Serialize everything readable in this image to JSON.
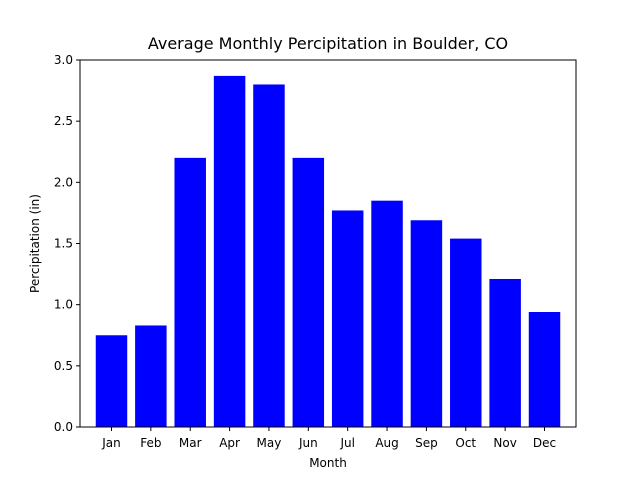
{
  "chart_data": {
    "type": "bar",
    "title": "Average Monthly Percipitation in Boulder, CO",
    "xlabel": "Month",
    "ylabel": "Percipitation (in)",
    "categories": [
      "Jan",
      "Feb",
      "Mar",
      "Apr",
      "May",
      "Jun",
      "Jul",
      "Aug",
      "Sep",
      "Oct",
      "Nov",
      "Dec"
    ],
    "values": [
      0.75,
      0.83,
      2.2,
      2.87,
      2.8,
      2.2,
      1.77,
      1.85,
      1.69,
      1.54,
      1.21,
      0.94
    ],
    "ylim": [
      0,
      3.0
    ],
    "yticks": [
      0.0,
      0.5,
      1.0,
      1.5,
      2.0,
      2.5,
      3.0
    ],
    "ytick_labels": [
      "0.0",
      "0.5",
      "1.0",
      "1.5",
      "2.0",
      "2.5",
      "3.0"
    ],
    "bar_color": "#0000ff",
    "grid": false,
    "legend": "none"
  }
}
